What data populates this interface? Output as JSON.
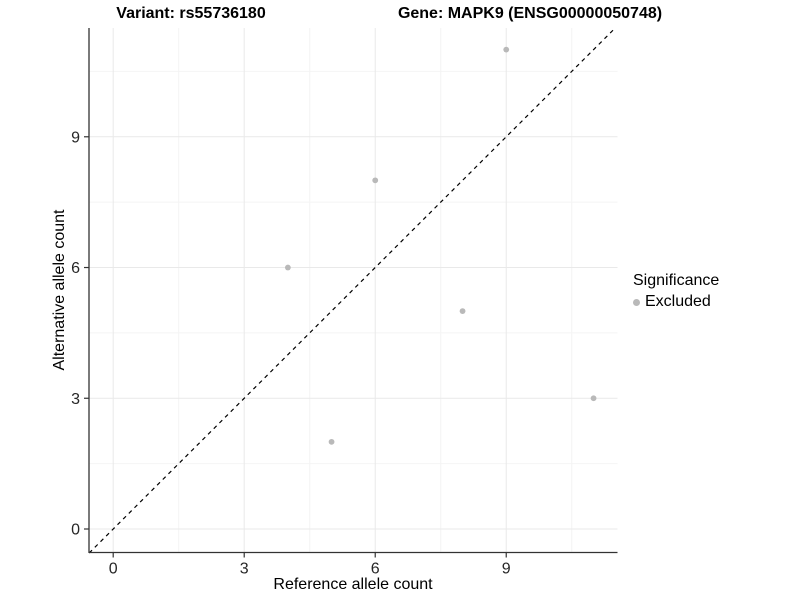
{
  "header": {
    "variant_title": "Variant: rs55736180",
    "gene_title": "Gene: MAPK9 (ENSG00000050748)"
  },
  "legend": {
    "title": "Significance",
    "items": [
      {
        "label": "Excluded",
        "color": "#b9b9b9"
      }
    ]
  },
  "chart_data": {
    "type": "scatter",
    "title": "Variant: rs55736180  Gene: MAPK9 (ENSG00000050748)",
    "xlabel": "Reference allele count",
    "ylabel": "Alternative allele count",
    "series": [
      {
        "name": "Excluded",
        "points": [
          {
            "x": 4,
            "y": 6
          },
          {
            "x": 5,
            "y": 2
          },
          {
            "x": 6,
            "y": 8
          },
          {
            "x": 8,
            "y": 5
          },
          {
            "x": 9,
            "y": 11
          },
          {
            "x": 11,
            "y": 3
          }
        ]
      }
    ],
    "x_ticks": [
      0,
      3,
      6,
      9
    ],
    "y_ticks": [
      0,
      3,
      6,
      9
    ],
    "minor_ticks": [
      1.5,
      4.5,
      7.5,
      10.5
    ],
    "xlim": [
      -0.55,
      11.55
    ],
    "ylim": [
      -0.55,
      11.5
    ],
    "identity_line": {
      "style": "dashed",
      "equation": "y = x"
    },
    "grid": "on",
    "legend_position": "right"
  },
  "colors": {
    "point": "#b9b9b9",
    "grid_major": "#e9e9e9",
    "grid_minor": "#f4f4f4",
    "axis_line": "#333333",
    "tick_text": "#262626",
    "identity_line": "#000000"
  }
}
